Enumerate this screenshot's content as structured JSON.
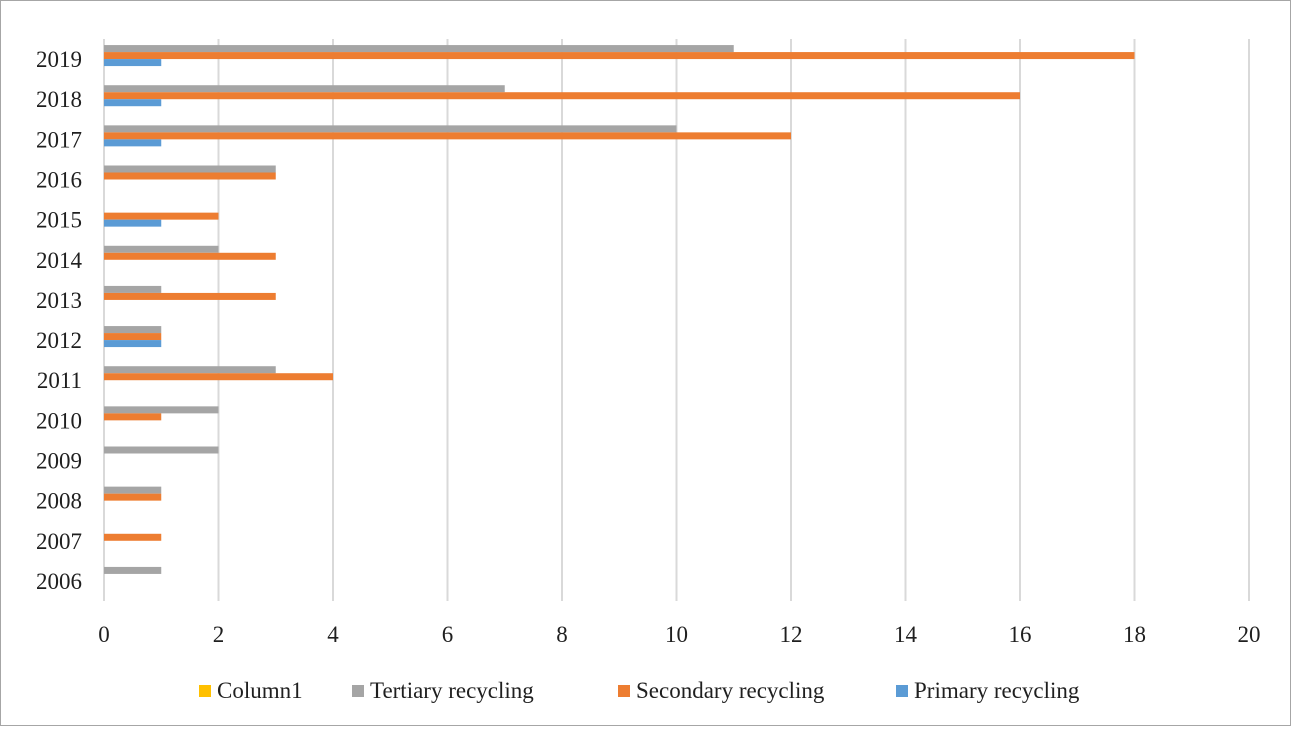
{
  "chart_data": {
    "type": "bar",
    "orientation": "horizontal",
    "categories": [
      "2006",
      "2007",
      "2008",
      "2009",
      "2010",
      "2011",
      "2012",
      "2013",
      "2014",
      "2015",
      "2016",
      "2017",
      "2018",
      "2019"
    ],
    "series": [
      {
        "name": "Column1",
        "color": "#ffc000",
        "values": [
          0,
          0,
          0,
          0,
          0,
          0,
          0,
          0,
          0,
          0,
          0,
          0,
          0,
          0
        ]
      },
      {
        "name": "Tertiary recycling",
        "color": "#a5a5a5",
        "values": [
          1,
          0,
          1,
          2,
          2,
          3,
          1,
          1,
          2,
          0,
          3,
          10,
          7,
          11
        ]
      },
      {
        "name": "Secondary recycling",
        "color": "#ed7d31",
        "values": [
          0,
          1,
          1,
          0,
          1,
          4,
          1,
          3,
          3,
          2,
          3,
          12,
          16,
          18
        ]
      },
      {
        "name": "Primary recycling",
        "color": "#5b9bd5",
        "values": [
          0,
          0,
          0,
          0,
          0,
          0,
          1,
          0,
          0,
          1,
          0,
          1,
          1,
          1
        ]
      }
    ],
    "xlim": [
      0,
      20
    ],
    "x_ticks": [
      "0",
      "2",
      "4",
      "6",
      "8",
      "10",
      "12",
      "14",
      "16",
      "18",
      "20"
    ],
    "grid": "vertical",
    "gridline_color": "#d9d9d9",
    "legend_position": "bottom"
  }
}
